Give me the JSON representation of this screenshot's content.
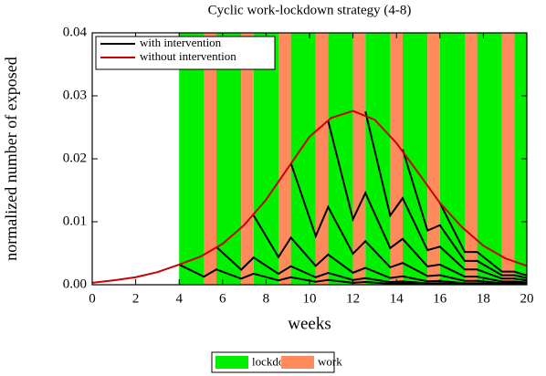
{
  "chart_data": {
    "type": "line",
    "title": "Cyclic work-lockdown strategy (4-8)",
    "xlabel": "weeks",
    "ylabel": "normalized number of exposed",
    "xlim": [
      0,
      20
    ],
    "ylim": [
      0,
      0.04
    ],
    "xticks": [
      0,
      2,
      4,
      6,
      8,
      10,
      12,
      14,
      16,
      18,
      20
    ],
    "yticks": [
      {
        "value": 0,
        "label": "0.00"
      },
      0.01,
      0.02,
      0.03,
      0.04
    ],
    "bands": [
      {
        "name": "lockdown",
        "color": "#00f000",
        "ranges": [
          [
            4,
            5.143
          ],
          [
            5.714,
            6.857
          ],
          [
            7.429,
            8.571
          ],
          [
            9.143,
            10.286
          ],
          [
            10.857,
            12
          ],
          [
            12.571,
            13.714
          ],
          [
            14.286,
            15.429
          ],
          [
            16,
            17.143
          ],
          [
            17.714,
            18.857
          ],
          [
            19.429,
            20
          ]
        ]
      },
      {
        "name": "work",
        "color": "#ff8a5c",
        "ranges": [
          [
            5.143,
            5.714
          ],
          [
            6.857,
            7.429
          ],
          [
            8.571,
            9.143
          ],
          [
            10.286,
            10.857
          ],
          [
            12,
            12.571
          ],
          [
            13.714,
            14.286
          ],
          [
            15.429,
            16
          ],
          [
            17.143,
            17.714
          ],
          [
            18.857,
            19.429
          ]
        ]
      }
    ],
    "series": [
      {
        "name": "with intervention",
        "color": "#000000",
        "x": [
          4,
          5.143,
          5.714,
          6.857,
          7.429,
          8.571,
          9.143,
          10.286,
          10.857,
          12,
          12.571,
          13.714,
          14.286,
          15.429,
          16,
          17.143,
          17.714,
          18.857,
          19.429,
          20
        ],
        "values": [
          0.0032,
          0.00128,
          0.00243,
          0.00097,
          0.00175,
          0.0007,
          0.00119,
          0.00048,
          0.00076,
          0.00031,
          0.00043,
          0.00017,
          0.00022,
          9e-05,
          0.0001,
          4e-05,
          4e-05,
          2e-05,
          2e-05,
          1e-05
        ]
      },
      {
        "color": "#000000",
        "x": [
          5.714,
          6.857,
          7.429,
          8.571,
          9.143,
          10.286,
          10.857,
          12,
          12.571,
          13.714,
          14.286,
          15.429,
          16,
          17.143,
          17.714,
          18.857,
          19.429,
          20
        ],
        "values": [
          0.006,
          0.0024,
          0.00432,
          0.00173,
          0.00294,
          0.00118,
          0.00188,
          0.00075,
          0.00105,
          0.00042,
          0.00053,
          0.00021,
          0.00023,
          9e-05,
          9e-05,
          4e-05,
          4e-05,
          3e-05
        ]
      },
      {
        "color": "#000000",
        "x": [
          7.429,
          8.571,
          9.143,
          10.286,
          10.857,
          12,
          12.571,
          13.714,
          14.286,
          15.429,
          16,
          17.143,
          17.714,
          18.857,
          19.429,
          20
        ],
        "values": [
          0.011,
          0.0044,
          0.00748,
          0.00299,
          0.00479,
          0.00191,
          0.00268,
          0.00107,
          0.00134,
          0.00054,
          0.00059,
          0.00024,
          0.00024,
          0.0001,
          0.0001,
          7e-05
        ]
      },
      {
        "color": "#000000",
        "x": [
          9.143,
          10.286,
          10.857,
          12,
          12.571,
          13.714,
          14.286,
          15.429,
          16,
          17.143,
          17.714,
          18.857,
          19.429,
          20
        ],
        "values": [
          0.0193,
          0.00772,
          0.01235,
          0.00494,
          0.00692,
          0.00277,
          0.00346,
          0.00138,
          0.00152,
          0.00061,
          0.00061,
          0.00024,
          0.00024,
          0.00017
        ]
      },
      {
        "color": "#000000",
        "x": [
          10.857,
          12,
          12.571,
          13.714,
          14.286,
          15.429,
          16,
          17.143,
          17.714,
          18.857,
          19.429,
          20
        ],
        "values": [
          0.026,
          0.0104,
          0.01456,
          0.00582,
          0.00728,
          0.00291,
          0.0032,
          0.00128,
          0.00128,
          0.00051,
          0.00051,
          0.00036
        ]
      },
      {
        "color": "#000000",
        "x": [
          12.571,
          13.714,
          14.286,
          15.429,
          16,
          17.143,
          17.714,
          18.857,
          19.429,
          20
        ],
        "values": [
          0.0275,
          0.011,
          0.01375,
          0.0055,
          0.00605,
          0.00242,
          0.00242,
          0.00097,
          0.00097,
          0.00068
        ]
      },
      {
        "color": "#000000",
        "x": [
          14.286,
          15.429,
          16,
          17.143,
          17.714,
          18.857,
          19.429,
          20
        ],
        "values": [
          0.0215,
          0.0086,
          0.00946,
          0.00378,
          0.00378,
          0.00151,
          0.00151,
          0.00106
        ]
      },
      {
        "color": "#000000",
        "x": [
          16,
          17.143,
          17.714,
          18.857,
          19.429,
          20
        ],
        "values": [
          0.013,
          0.0052,
          0.0052,
          0.00208,
          0.00208,
          0.00146
        ]
      },
      {
        "name": "without intervention",
        "color": "#cc0000",
        "x": [
          0,
          1,
          2,
          3,
          4,
          5,
          6,
          7,
          8,
          9,
          10,
          11,
          12,
          13,
          14,
          15,
          16,
          17,
          18,
          19,
          20
        ],
        "values": [
          0.0003,
          0.0007,
          0.0012,
          0.002,
          0.0032,
          0.0045,
          0.0065,
          0.0095,
          0.0135,
          0.0185,
          0.0235,
          0.0265,
          0.0276,
          0.0262,
          0.0225,
          0.0178,
          0.013,
          0.0092,
          0.0062,
          0.0042,
          0.003
        ]
      }
    ]
  }
}
